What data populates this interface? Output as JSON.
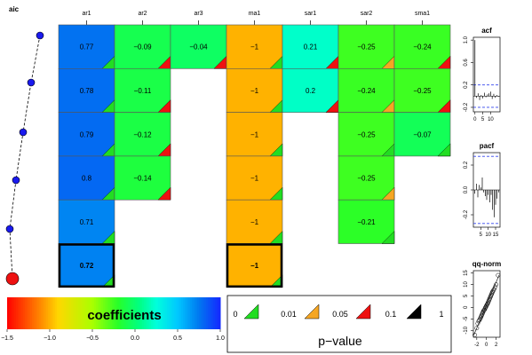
{
  "chart_data": [
    {
      "type": "heatmap",
      "columns": [
        "ar1",
        "ar2",
        "ar3",
        "ma1",
        "sar1",
        "sar2",
        "sma1"
      ],
      "rows": [
        [
          "0.77",
          "−0.09",
          "−0.04",
          "−1",
          "0.21",
          "−0.25",
          "−0.24"
        ],
        [
          "0.78",
          "−0.11",
          "",
          "−1",
          "0.2",
          "−0.24",
          "−0.25"
        ],
        [
          "0.79",
          "−0.12",
          "",
          "−1",
          "",
          "−0.25",
          "−0.07"
        ],
        [
          "0.8",
          "−0.14",
          "",
          "−1",
          "",
          "−0.25",
          ""
        ],
        [
          "0.71",
          "",
          "",
          "−1",
          "",
          "−0.21",
          ""
        ],
        [
          "0.72",
          "",
          "",
          "−1",
          "",
          "",
          ""
        ]
      ],
      "values": [
        [
          0.77,
          -0.09,
          -0.04,
          -1,
          0.21,
          -0.25,
          -0.24
        ],
        [
          0.78,
          -0.11,
          null,
          -1,
          0.2,
          -0.24,
          -0.25
        ],
        [
          0.79,
          -0.12,
          null,
          -1,
          null,
          -0.25,
          -0.07
        ],
        [
          0.8,
          -0.14,
          null,
          -1,
          null,
          -0.25,
          null
        ],
        [
          0.71,
          null,
          null,
          -1,
          null,
          -0.21,
          null
        ],
        [
          0.72,
          null,
          null,
          -1,
          null,
          null,
          null
        ]
      ],
      "pvalue_class": [
        [
          0,
          2,
          2,
          0,
          2,
          1,
          2
        ],
        [
          0,
          2,
          null,
          0,
          2,
          1,
          2
        ],
        [
          0,
          2,
          null,
          0,
          null,
          0,
          0
        ],
        [
          0,
          2,
          null,
          0,
          null,
          1,
          null
        ],
        [
          0,
          null,
          null,
          0,
          null,
          0,
          null
        ],
        [
          0,
          null,
          null,
          0,
          null,
          null,
          null
        ]
      ],
      "selected_row": 5,
      "selected_columns": [
        0,
        3
      ]
    },
    {
      "type": "line",
      "title": "aic",
      "values": [
        6,
        5,
        4,
        3,
        2,
        1
      ]
    },
    {
      "type": "bar",
      "title": "acf",
      "yticks": [
        "-0.2",
        "0.2",
        "0.6",
        "1.0"
      ],
      "xticks": [
        "0",
        "5",
        "10"
      ],
      "ylim": [
        -0.28,
        1.05
      ],
      "xlim": [
        -1,
        16
      ],
      "lags": [
        0,
        1,
        2,
        3,
        4,
        5,
        6,
        7,
        8,
        9,
        10,
        11,
        12,
        13,
        14,
        15
      ],
      "values": [
        1.0,
        -0.03,
        0.05,
        -0.07,
        0.02,
        -0.04,
        0.06,
        -0.02,
        0.03,
        0.05,
        0.08,
        -0.05,
        0.04,
        -0.03,
        0.02,
        -0.01
      ],
      "ci": 0.2
    },
    {
      "type": "bar",
      "title": "pacf",
      "yticks": [
        "-0.2",
        "0.0",
        "0.2"
      ],
      "xticks": [
        "5",
        "10",
        "15"
      ],
      "ylim": [
        -0.3,
        0.3
      ],
      "xlim": [
        0,
        18
      ],
      "lags": [
        1,
        2,
        3,
        4,
        5,
        6,
        7,
        8,
        9,
        10,
        11,
        12,
        13,
        14,
        15,
        16,
        17
      ],
      "values": [
        -0.03,
        0.05,
        -0.06,
        0.04,
        0.02,
        0.1,
        -0.02,
        -0.05,
        -0.08,
        -0.04,
        -0.1,
        -0.04,
        -0.16,
        -0.22,
        -0.12,
        -0.07,
        -0.02
      ],
      "ci": 0.27
    },
    {
      "type": "scatter",
      "title": "qq-norm",
      "yticks": [
        "-10",
        "-5",
        "0",
        "5",
        "10",
        "15"
      ],
      "xticks": [
        "-2",
        "0",
        "2"
      ],
      "xlim": [
        -2.7,
        2.8
      ],
      "ylim": [
        -13,
        16
      ],
      "points": [
        [
          -2.4,
          -12
        ],
        [
          -2.0,
          -9
        ],
        [
          -1.8,
          -7
        ],
        [
          -1.6,
          -6
        ],
        [
          -1.45,
          -5.5
        ],
        [
          -1.3,
          -5
        ],
        [
          -1.2,
          -4.5
        ],
        [
          -1.1,
          -4
        ],
        [
          -1.0,
          -3.5
        ],
        [
          -0.9,
          -3
        ],
        [
          -0.8,
          -2.5
        ],
        [
          -0.7,
          -2
        ],
        [
          -0.6,
          -1.5
        ],
        [
          -0.5,
          -1.2
        ],
        [
          -0.4,
          -1
        ],
        [
          -0.3,
          -0.5
        ],
        [
          -0.2,
          0
        ],
        [
          -0.1,
          0.3
        ],
        [
          0.0,
          0.8
        ],
        [
          0.1,
          1.2
        ],
        [
          0.2,
          1.5
        ],
        [
          0.3,
          2
        ],
        [
          0.4,
          2.5
        ],
        [
          0.5,
          3
        ],
        [
          0.6,
          3.5
        ],
        [
          0.7,
          4
        ],
        [
          0.8,
          4.5
        ],
        [
          0.9,
          5
        ],
        [
          1.0,
          5.5
        ],
        [
          1.1,
          6
        ],
        [
          1.2,
          6.5
        ],
        [
          1.3,
          7
        ],
        [
          1.45,
          7.5
        ],
        [
          1.6,
          8
        ],
        [
          1.8,
          9
        ],
        [
          2.0,
          10
        ],
        [
          2.4,
          14
        ]
      ]
    }
  ],
  "colorbar": {
    "label": "coefficients",
    "ticks": [
      "−1.5",
      "−1.0",
      "−0.5",
      "0.0",
      "0.5",
      "1.0"
    ]
  },
  "pvalue_legend": {
    "title": "p−value",
    "labels": [
      "0",
      "0.01",
      "0.05",
      "0.1",
      "1"
    ],
    "colors": [
      "#22dd22",
      "#f5a623",
      "#ee1111",
      "#000000"
    ]
  }
}
